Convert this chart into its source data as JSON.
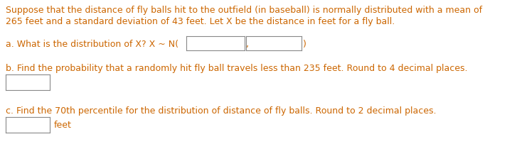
{
  "line1": "Suppose that the distance of fly balls hit to the outfield (in baseball) is normally distributed with a mean of",
  "line2": "265 feet and a standard deviation of 43 feet. Let X be the distance in feet for a fly ball.",
  "line_a_prefix": "a. What is the distribution of X? X ~ N(",
  "line_a_suffix": ")",
  "line_b": "b. Find the probability that a randomly hit fly ball travels less than 235 feet. Round to 4 decimal places.",
  "line_c": "c. Find the 70th percentile for the distribution of distance of fly balls. Round to 2 decimal places.",
  "feet_label": "feet",
  "bg_color": "#ffffff",
  "text_color": "#cc6600",
  "box_edge_color": "#888888",
  "box_fill": "#ffffff",
  "font_size": 9.0,
  "fig_width": 7.27,
  "fig_height": 2.28,
  "dpi": 100
}
